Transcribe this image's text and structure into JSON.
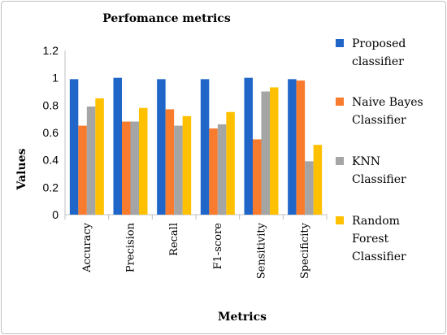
{
  "chart_data": {
    "type": "bar",
    "title": "Perfomance metrics",
    "xlabel": "Metrics",
    "ylabel": "Values",
    "ylim": [
      0,
      1.2
    ],
    "yticks": [
      "0",
      "0.2",
      "0.4",
      "0.6",
      "0.8",
      "1",
      "1.2"
    ],
    "grid": false,
    "legend_position": "right",
    "categories": [
      "Accuracy",
      "Precision",
      "Recall",
      "F1-score",
      "Sensitivity",
      "Specificity"
    ],
    "series": [
      {
        "name": "Proposed classifier",
        "legend_lines": [
          "Proposed",
          "classifier"
        ],
        "color": "#1F66C8",
        "values": [
          0.99,
          1.0,
          0.99,
          0.99,
          1.0,
          0.99
        ]
      },
      {
        "name": "Naive Bayes Classifier",
        "legend_lines": [
          "Naive Bayes",
          "Classifier"
        ],
        "color": "#F97B2E",
        "values": [
          0.65,
          0.68,
          0.77,
          0.63,
          0.55,
          0.98
        ]
      },
      {
        "name": "KNN Classifier",
        "legend_lines": [
          "KNN",
          "Classifier"
        ],
        "color": "#A5A5A5",
        "values": [
          0.79,
          0.68,
          0.65,
          0.66,
          0.9,
          0.39
        ]
      },
      {
        "name": "Random Forest Classifier",
        "legend_lines": [
          "Random",
          "Forest",
          "Classifier"
        ],
        "color": "#FFC000",
        "values": [
          0.85,
          0.78,
          0.72,
          0.75,
          0.93,
          0.51
        ]
      }
    ]
  }
}
